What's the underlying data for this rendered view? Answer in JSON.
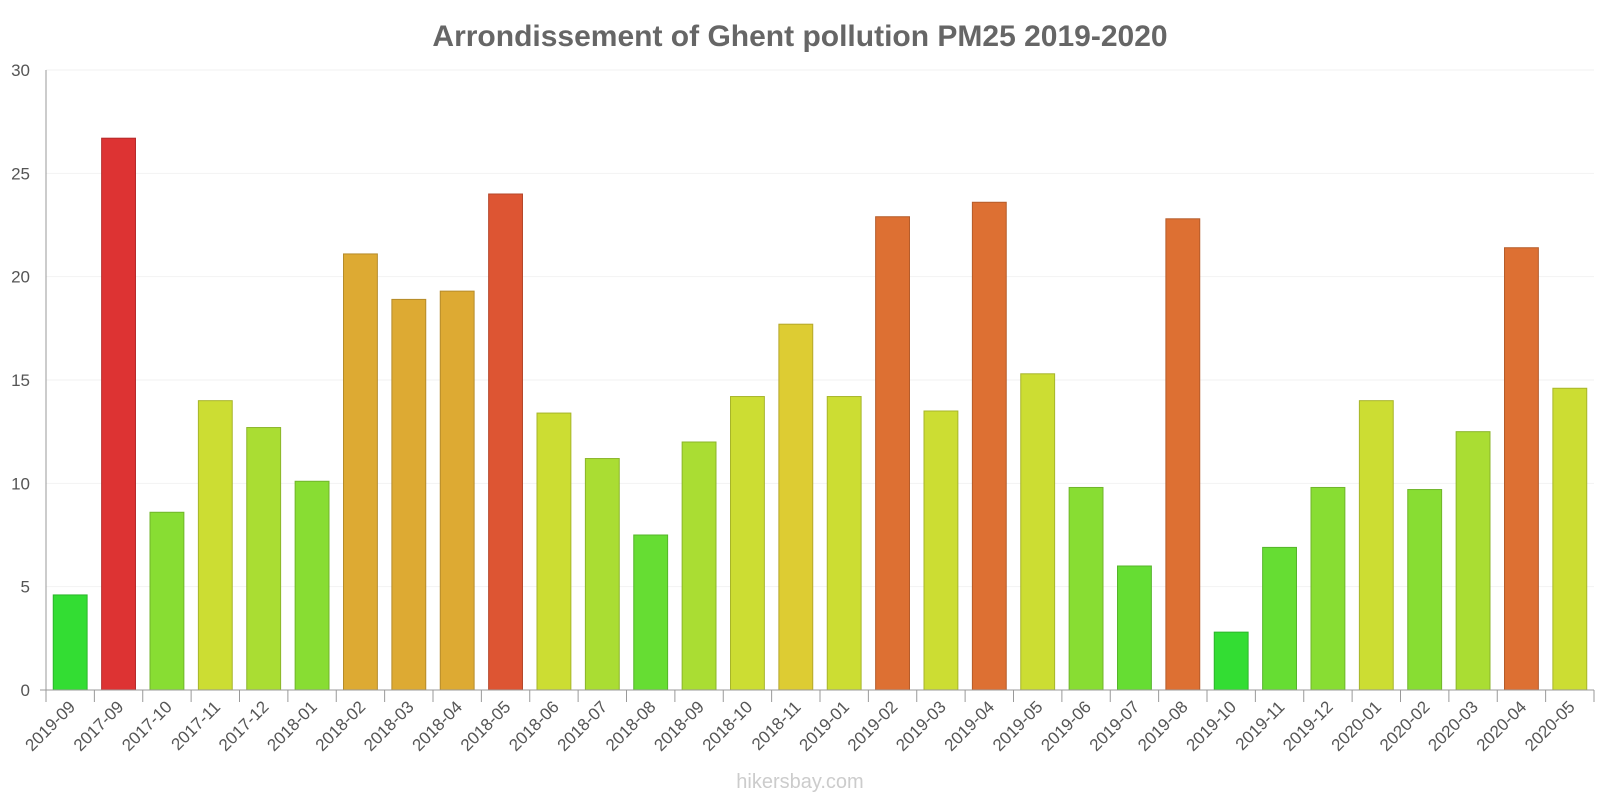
{
  "chart_data": {
    "type": "bar",
    "title": "Arrondissement of Ghent pollution PM25 2019-2020",
    "xlabel": "",
    "ylabel": "",
    "ylim": [
      0,
      30
    ],
    "yticks": [
      0,
      5,
      10,
      15,
      20,
      25,
      30
    ],
    "grid": true,
    "categories": [
      "2019-09",
      "2017-09",
      "2017-10",
      "2017-11",
      "2017-12",
      "2018-01",
      "2018-02",
      "2018-03",
      "2018-04",
      "2018-05",
      "2018-06",
      "2018-07",
      "2018-08",
      "2018-09",
      "2018-10",
      "2018-11",
      "2019-01",
      "2019-02",
      "2019-03",
      "2019-04",
      "2019-05",
      "2019-06",
      "2019-07",
      "2019-08",
      "2019-10",
      "2019-11",
      "2019-12",
      "2020-01",
      "2020-02",
      "2020-03",
      "2020-04",
      "2020-05"
    ],
    "values": [
      4.6,
      26.7,
      8.6,
      14.0,
      12.7,
      10.1,
      21.1,
      18.9,
      19.3,
      24.0,
      13.4,
      11.2,
      7.5,
      12.0,
      14.2,
      17.7,
      14.2,
      22.9,
      13.5,
      23.6,
      15.3,
      9.8,
      6.0,
      22.8,
      2.8,
      6.9,
      9.8,
      14.0,
      9.7,
      12.5,
      21.4,
      14.6
    ],
    "colors": [
      "#33dd33",
      "#dd3333",
      "#88dd33",
      "#ccdd33",
      "#aadd33",
      "#88dd33",
      "#ddaa33",
      "#ddaa33",
      "#ddaa33",
      "#dd5533",
      "#ccdd33",
      "#aadd33",
      "#66dd33",
      "#aadd33",
      "#ccdd33",
      "#ddcc33",
      "#ccdd33",
      "#dd7033",
      "#ccdd33",
      "#dd7033",
      "#ccdd33",
      "#88dd33",
      "#66dd33",
      "#dd7033",
      "#33dd33",
      "#66dd33",
      "#88dd33",
      "#ccdd33",
      "#88dd33",
      "#aadd33",
      "#dd7033",
      "#ccdd33"
    ]
  },
  "watermark": "hikersbay.com"
}
